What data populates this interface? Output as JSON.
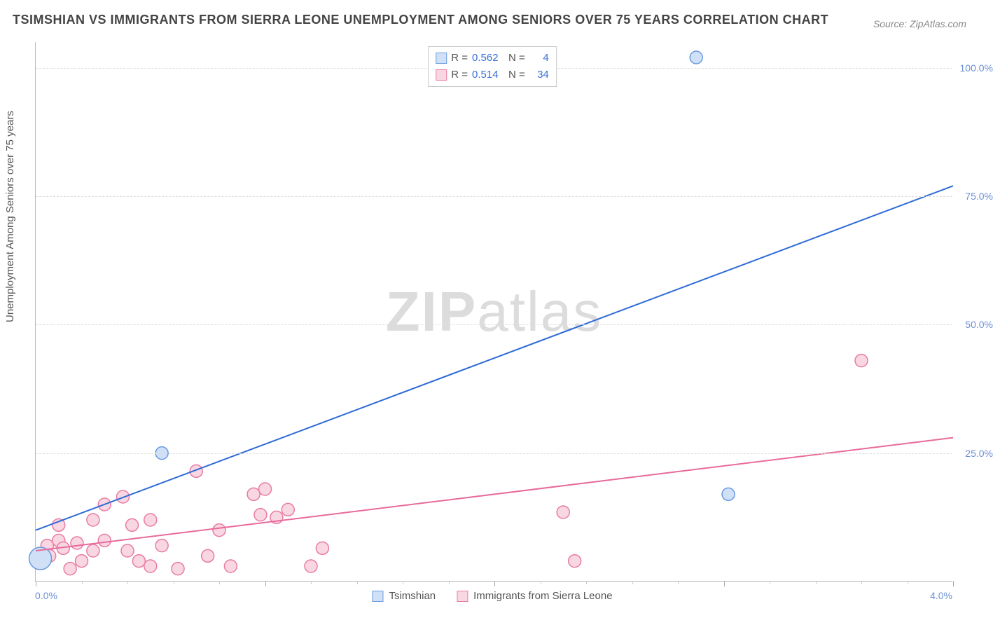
{
  "title": "TSIMSHIAN VS IMMIGRANTS FROM SIERRA LEONE UNEMPLOYMENT AMONG SENIORS OVER 75 YEARS CORRELATION CHART",
  "source": "Source: ZipAtlas.com",
  "ylabel": "Unemployment Among Seniors over 75 years",
  "watermark": {
    "bold": "ZIP",
    "rest": "atlas"
  },
  "chart": {
    "type": "scatter",
    "background_color": "#ffffff",
    "grid_color": "#dddddd",
    "axis_color": "#bbbbbb",
    "x": {
      "min": 0.0,
      "max": 4.0,
      "label_min": "0.0%",
      "label_max": "4.0%",
      "major_step": 1.0,
      "minor_step": 0.2
    },
    "y": {
      "min": 0.0,
      "max": 105.0,
      "ticks": [
        25.0,
        50.0,
        75.0,
        100.0
      ],
      "tick_labels": [
        "25.0%",
        "50.0%",
        "75.0%",
        "100.0%"
      ]
    },
    "series": [
      {
        "key": "tsimshian",
        "label": "Tsimshian",
        "color_fill": "#cfe0f7",
        "color_stroke": "#6b9ae0",
        "marker_radius": 9,
        "R": "0.562",
        "N": "4",
        "trend": {
          "x1": 0.0,
          "y1": 10.0,
          "x2": 4.0,
          "y2": 77.0,
          "color": "#2e6bd6",
          "width": 2
        },
        "points": [
          {
            "x": 0.02,
            "y": 4.5,
            "r": 16
          },
          {
            "x": 0.55,
            "y": 25.0,
            "r": 9
          },
          {
            "x": 3.02,
            "y": 17.0,
            "r": 9
          },
          {
            "x": 2.88,
            "y": 102.0,
            "r": 9
          }
        ]
      },
      {
        "key": "sierra_leone",
        "label": "Immigrants from Sierra Leone",
        "color_fill": "#f9d7e2",
        "color_stroke": "#e87ba3",
        "marker_radius": 9,
        "R": "0.514",
        "N": "34",
        "trend": {
          "x1": 0.0,
          "y1": 6.0,
          "x2": 4.0,
          "y2": 28.0,
          "color": "#e86a9a",
          "width": 2
        },
        "points": [
          {
            "x": 0.05,
            "y": 7.0
          },
          {
            "x": 0.06,
            "y": 5.0
          },
          {
            "x": 0.1,
            "y": 8.0
          },
          {
            "x": 0.1,
            "y": 11.0
          },
          {
            "x": 0.12,
            "y": 6.5
          },
          {
            "x": 0.15,
            "y": 2.5
          },
          {
            "x": 0.18,
            "y": 7.5
          },
          {
            "x": 0.2,
            "y": 4.0
          },
          {
            "x": 0.25,
            "y": 12.0
          },
          {
            "x": 0.25,
            "y": 6.0
          },
          {
            "x": 0.3,
            "y": 15.0
          },
          {
            "x": 0.3,
            "y": 8.0
          },
          {
            "x": 0.38,
            "y": 16.5
          },
          {
            "x": 0.4,
            "y": 6.0
          },
          {
            "x": 0.42,
            "y": 11.0
          },
          {
            "x": 0.45,
            "y": 4.0
          },
          {
            "x": 0.5,
            "y": 3.0
          },
          {
            "x": 0.5,
            "y": 12.0
          },
          {
            "x": 0.55,
            "y": 7.0
          },
          {
            "x": 0.62,
            "y": 2.5
          },
          {
            "x": 0.7,
            "y": 21.5
          },
          {
            "x": 0.75,
            "y": 5.0
          },
          {
            "x": 0.8,
            "y": 10.0
          },
          {
            "x": 0.85,
            "y": 3.0
          },
          {
            "x": 0.95,
            "y": 17.0
          },
          {
            "x": 0.98,
            "y": 13.0
          },
          {
            "x": 1.0,
            "y": 18.0
          },
          {
            "x": 1.05,
            "y": 12.5
          },
          {
            "x": 1.1,
            "y": 14.0
          },
          {
            "x": 1.2,
            "y": 3.0
          },
          {
            "x": 1.25,
            "y": 6.5
          },
          {
            "x": 2.3,
            "y": 13.5
          },
          {
            "x": 2.35,
            "y": 4.0
          },
          {
            "x": 3.6,
            "y": 43.0
          }
        ]
      }
    ]
  },
  "legend_top": {
    "rows": [
      {
        "swatch": "tsimshian",
        "r_label": "R =",
        "r_val": "0.562",
        "n_label": "N =",
        "n_val": "4"
      },
      {
        "swatch": "sierra_leone",
        "r_label": "R =",
        "r_val": "0.514",
        "n_label": "N =",
        "n_val": "34"
      }
    ]
  }
}
